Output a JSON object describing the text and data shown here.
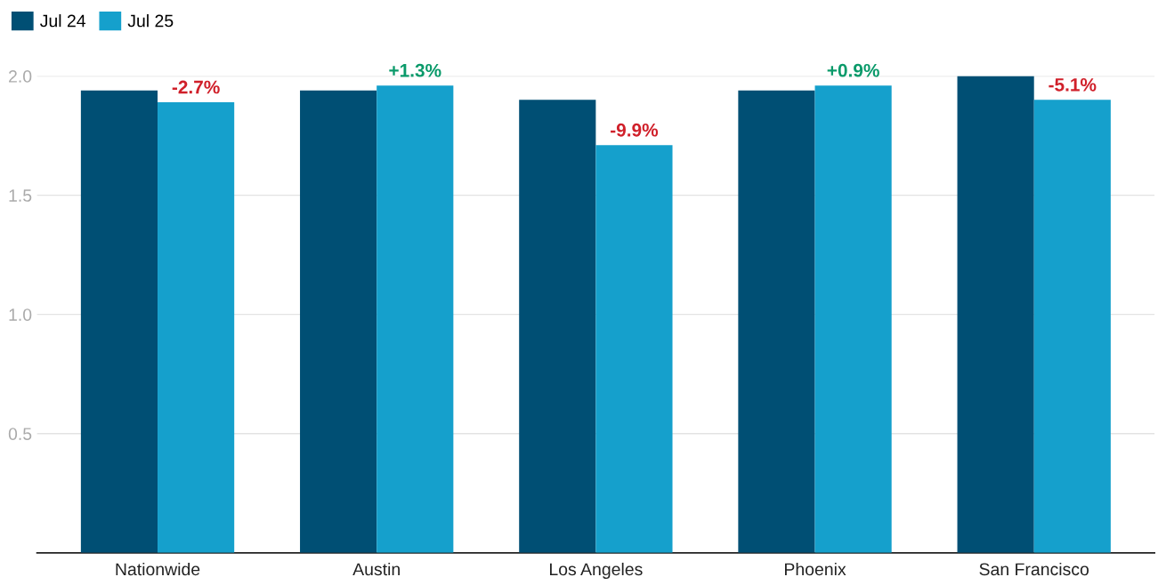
{
  "chart_data": {
    "type": "bar",
    "categories": [
      "Nationwide",
      "Austin",
      "Los Angeles",
      "Phoenix",
      "San Francisco"
    ],
    "series": [
      {
        "name": "Jul 24",
        "color": "#004f74",
        "values": [
          1.94,
          1.94,
          1.9,
          1.94,
          2.0
        ]
      },
      {
        "name": "Jul 25",
        "color": "#15a0cc",
        "values": [
          1.89,
          1.96,
          1.71,
          1.96,
          1.9
        ]
      }
    ],
    "annotations": [
      {
        "text": "-2.7%",
        "x": "Nationwide",
        "y": 1.89
      },
      {
        "text": "+1.3%",
        "x": "Austin",
        "y": 1.96
      },
      {
        "text": "-9.9%",
        "x": "Los Angeles",
        "y": 1.71
      },
      {
        "text": "+0.9%",
        "x": "Phoenix",
        "y": 1.96
      },
      {
        "text": "-5.1%",
        "x": "San Francisco",
        "y": 1.9
      }
    ],
    "ylim": [
      0,
      2.0
    ],
    "yticks": [
      0.5,
      {
        "value": 1.0,
        "label": "1.0"
      },
      1.5,
      {
        "value": 2.0,
        "label": "2.0"
      }
    ],
    "grid": "y",
    "legend": "top left"
  }
}
